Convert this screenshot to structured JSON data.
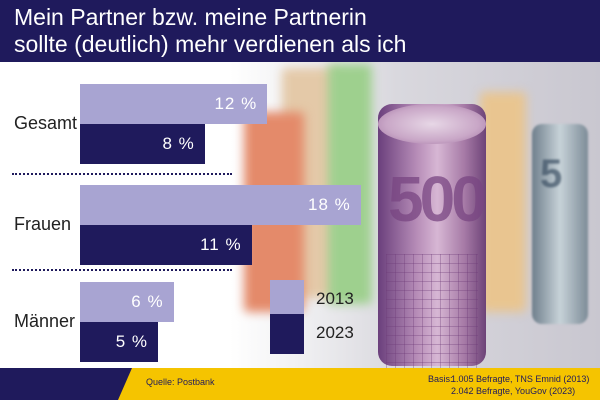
{
  "header": {
    "title": "Mein Partner bzw. meine Partnerin\nsollte (deutlich) mehr verdienen als ich"
  },
  "legend": {
    "item_2013": "2013",
    "item_2023": "2023"
  },
  "footer": {
    "source": "Quelle: Postbank",
    "basis_label": "Basis:",
    "basis_line_1": "1.005 Befragte, TNS Emnid (2013)",
    "basis_line_2": "2.042 Befragte, YouGov (2023)"
  },
  "colors": {
    "navy": "#1f1a5c",
    "lavender": "#a8a4d2",
    "yellow": "#f5c400"
  },
  "icons": {
    "photo": "rolled-euro-banknotes-photo"
  },
  "chart_data": {
    "type": "bar",
    "orientation": "horizontal",
    "title": "Mein Partner bzw. meine Partnerin sollte (deutlich) mehr verdienen als ich",
    "categories": [
      "Gesamt",
      "Frauen",
      "Männer"
    ],
    "series": [
      {
        "name": "2013",
        "values": [
          12,
          18,
          6
        ],
        "labels": [
          "12 %",
          "18 %",
          "6 %"
        ]
      },
      {
        "name": "2023",
        "values": [
          8,
          11,
          5
        ],
        "labels": [
          "8 %",
          "11 %",
          "5 %"
        ]
      }
    ],
    "unit": "%",
    "grid": false,
    "legend_position": "bottom-right"
  }
}
